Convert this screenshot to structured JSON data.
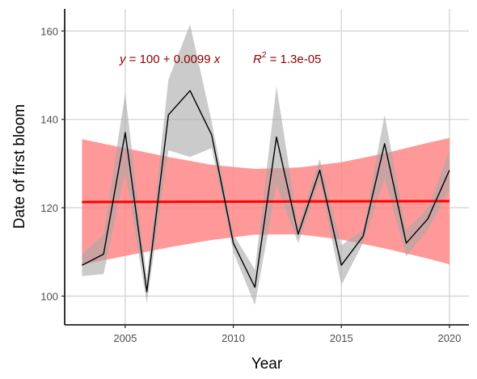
{
  "chart_data": {
    "type": "line",
    "xlabel": "Year",
    "ylabel": "Date of first bloom",
    "xlim": [
      2002.2,
      20209
    ],
    "ylim": [
      93.5,
      165
    ],
    "x_ticks": [
      2005,
      2010,
      2015,
      2020
    ],
    "y_ticks": [
      100,
      120,
      140,
      160
    ],
    "grid": true,
    "annotation": {
      "y_var": "y",
      "formula_rest": " = 100 + 0.0099 ",
      "x_var": "x",
      "r2_label": "R",
      "r2_sup": "2",
      "r2_value": " = 1.3e-05"
    },
    "observed": {
      "x": [
        2003,
        2004,
        2005,
        2006,
        2007,
        2008,
        2009,
        2010,
        2011,
        2012,
        2013,
        2014,
        2015,
        2016,
        2017,
        2018,
        2019,
        2020
      ],
      "y": [
        107,
        109.5,
        137,
        101,
        141,
        146.5,
        136.5,
        112,
        102,
        136,
        114,
        128.5,
        107,
        113.5,
        134.5,
        112,
        117.5,
        128.5
      ],
      "lower": [
        104.5,
        105,
        128,
        98.5,
        133,
        131.5,
        133.5,
        110,
        98,
        125,
        112,
        126,
        102.5,
        112,
        126.5,
        109,
        115,
        124
      ],
      "upper": [
        109.5,
        114,
        146,
        104,
        149,
        161.5,
        139.5,
        114,
        106,
        147.5,
        116,
        131,
        111.5,
        115,
        141,
        115,
        120,
        133
      ]
    },
    "trend": {
      "x": [
        2003,
        2020
      ],
      "y": [
        121.3,
        121.5
      ],
      "ci_x": [
        2003,
        2005,
        2007,
        2009,
        2011,
        2013,
        2015,
        2017,
        2019,
        2020
      ],
      "ci_upper": [
        135.5,
        133.5,
        131.5,
        129.7,
        128.8,
        129.1,
        130.3,
        132.3,
        134.7,
        135.8
      ],
      "ci_lower": [
        107.1,
        109.1,
        111.0,
        112.7,
        113.9,
        114.0,
        112.8,
        110.8,
        108.5,
        107.2
      ]
    },
    "colors": {
      "observed_line": "#000000",
      "observed_ribbon": "#c9c9c9",
      "trend_line": "#ff0000",
      "trend_ribbon": "#ff8080",
      "grid": "#d3d3d3",
      "annotation": "#8b0000"
    }
  }
}
